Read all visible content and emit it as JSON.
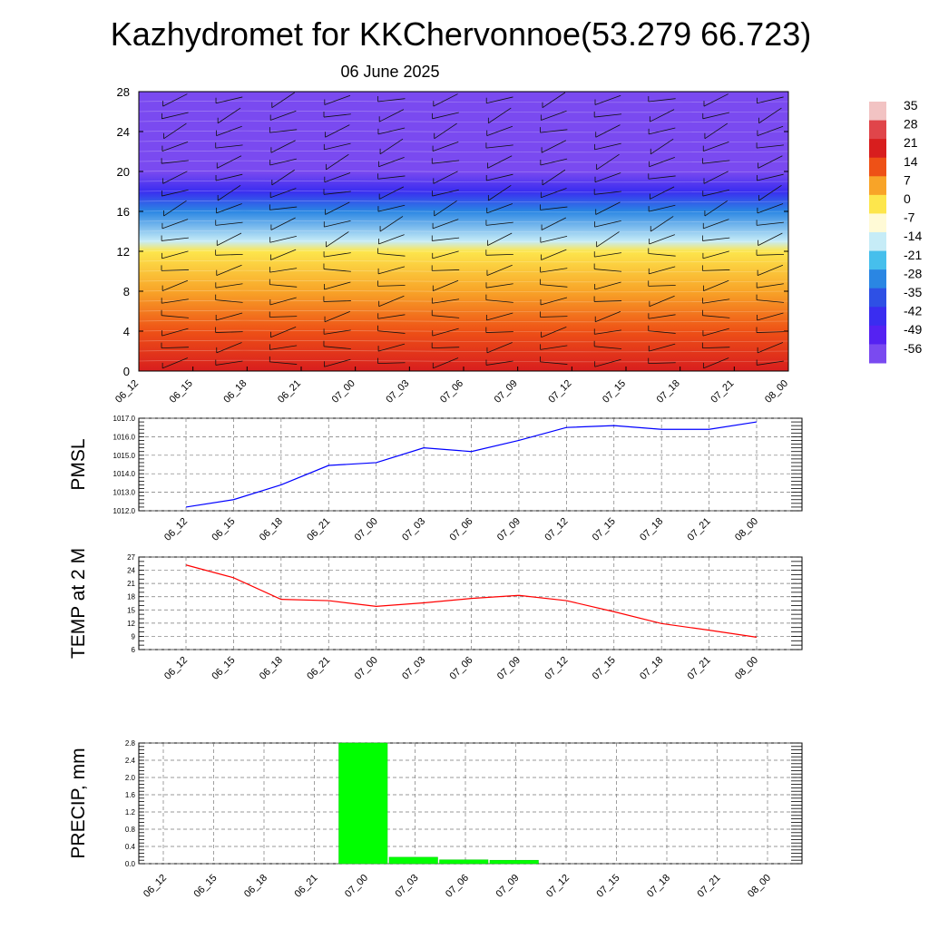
{
  "title": "Kazhydromet for KKChervonnoe(53.279 66.723)",
  "subtitle": "06 June 2025",
  "time_labels": [
    "06_12",
    "06_15",
    "06_18",
    "06_21",
    "07_00",
    "07_03",
    "07_06",
    "07_09",
    "07_12",
    "07_15",
    "07_18",
    "07_21",
    "08_00"
  ],
  "chart_data": [
    {
      "type": "heatmap",
      "id": "cross-section",
      "xlabel": "",
      "ylabel": "",
      "x": [
        "06_12",
        "06_15",
        "06_18",
        "06_21",
        "07_00",
        "07_03",
        "07_06",
        "07_09",
        "07_12",
        "07_15",
        "07_18",
        "07_21",
        "08_00"
      ],
      "y_ticks": [
        0,
        4,
        8,
        12,
        16,
        20,
        24,
        28
      ],
      "ylim": [
        0,
        28
      ],
      "profile": [
        {
          "y": 0,
          "value": 21
        },
        {
          "y": 4,
          "value": 16
        },
        {
          "y": 8,
          "value": 9
        },
        {
          "y": 12,
          "value": 0
        },
        {
          "y": 13,
          "value": -12
        },
        {
          "y": 16,
          "value": -28
        },
        {
          "y": 18,
          "value": -45
        },
        {
          "y": 20,
          "value": -56
        },
        {
          "y": 22,
          "value": -58
        },
        {
          "y": 24,
          "value": -57
        },
        {
          "y": 28,
          "value": -56
        }
      ],
      "colorbar": {
        "labels": [
          "35",
          "28",
          "21",
          "14",
          "7",
          "0",
          "-7",
          "-14",
          "-21",
          "-28",
          "-35",
          "-42",
          "-49",
          "-56"
        ],
        "colors": [
          "#f2c3c3",
          "#e0454a",
          "#d81e1e",
          "#ee5116",
          "#f8a428",
          "#fde64c",
          "#fffad6",
          "#c6ecf7",
          "#46bfec",
          "#2a86e3",
          "#2e50e5",
          "#3a2df0",
          "#5522f2",
          "#7a4af0"
        ]
      },
      "wind_barbs": true
    },
    {
      "type": "line",
      "id": "pmsl",
      "ylabel": "PMSL",
      "x": [
        "06_12",
        "06_15",
        "06_18",
        "06_21",
        "07_00",
        "07_03",
        "07_06",
        "07_09",
        "07_12",
        "07_15",
        "07_18",
        "07_21",
        "08_00"
      ],
      "y_ticks": [
        "1012.0",
        "1013.0",
        "1014.0",
        "1015.0",
        "1016.0",
        "1017.0"
      ],
      "ylim": [
        1012,
        1017
      ],
      "series": [
        {
          "values": [
            1012.2,
            1012.6,
            1013.4,
            1014.45,
            1014.6,
            1015.4,
            1015.2,
            1015.8,
            1016.5,
            1016.6,
            1016.4,
            1016.4,
            1016.8
          ],
          "color": "#0000ff"
        }
      ]
    },
    {
      "type": "line",
      "id": "temp2m",
      "ylabel": "TEMP at 2 M",
      "x": [
        "06_12",
        "06_15",
        "06_18",
        "06_21",
        "07_00",
        "07_03",
        "07_06",
        "07_09",
        "07_12",
        "07_15",
        "07_18",
        "07_21",
        "08_00"
      ],
      "y_ticks": [
        "6",
        "9",
        "12",
        "15",
        "18",
        "21",
        "24",
        "27"
      ],
      "ylim": [
        6,
        27
      ],
      "series": [
        {
          "values": [
            25.2,
            22.3,
            17.4,
            17.1,
            15.8,
            16.6,
            17.6,
            18.3,
            17.1,
            14.6,
            11.9,
            10.4,
            8.8
          ],
          "color": "#ff0000"
        }
      ]
    },
    {
      "type": "bar",
      "id": "precip",
      "ylabel": "PRECIP, mm",
      "categories": [
        "06_12",
        "06_15",
        "06_18",
        "06_21",
        "07_00",
        "07_03",
        "07_06",
        "07_09",
        "07_12",
        "07_15",
        "07_18",
        "07_21",
        "08_00"
      ],
      "y_ticks": [
        "0.0",
        "0.4",
        "0.8",
        "1.2",
        "1.6",
        "2.0",
        "2.4",
        "2.8"
      ],
      "ylim": [
        0,
        2.8
      ],
      "values": [
        0,
        0,
        0,
        0,
        2.8,
        0.15,
        0.09,
        0.08,
        0,
        0,
        0,
        0,
        0
      ],
      "color": "#00ff00"
    }
  ]
}
